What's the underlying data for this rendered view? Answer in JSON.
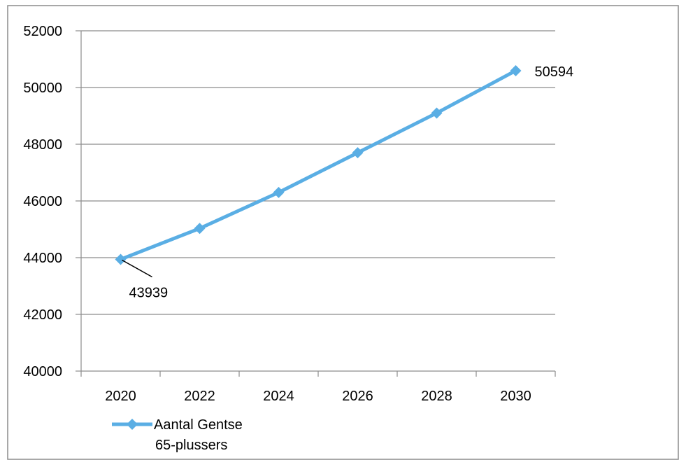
{
  "chart_data": {
    "type": "line",
    "title": "",
    "xlabel": "",
    "ylabel": "",
    "x": [
      2020,
      2022,
      2024,
      2026,
      2028,
      2030
    ],
    "xlim": [
      2019,
      2031
    ],
    "ylim": [
      40000,
      52000
    ],
    "y_ticks": [
      40000,
      42000,
      44000,
      46000,
      48000,
      50000,
      52000
    ],
    "x_tick_labels": [
      "2020",
      "2022",
      "2024",
      "2026",
      "2028",
      "2030"
    ],
    "grid": "horizontal",
    "legend_position": "bottom-left",
    "series": [
      {
        "name_lines": [
          "Aantal Gentse",
          "65-plussers"
        ],
        "values": [
          43939,
          45030,
          46300,
          47700,
          49100,
          50594
        ],
        "color": "#5aaee4",
        "marker": "diamond",
        "data_labels": [
          {
            "index": 0,
            "text": "43939",
            "leader_line": true
          },
          {
            "index": 5,
            "text": "50594",
            "leader_line": false
          }
        ]
      }
    ]
  }
}
